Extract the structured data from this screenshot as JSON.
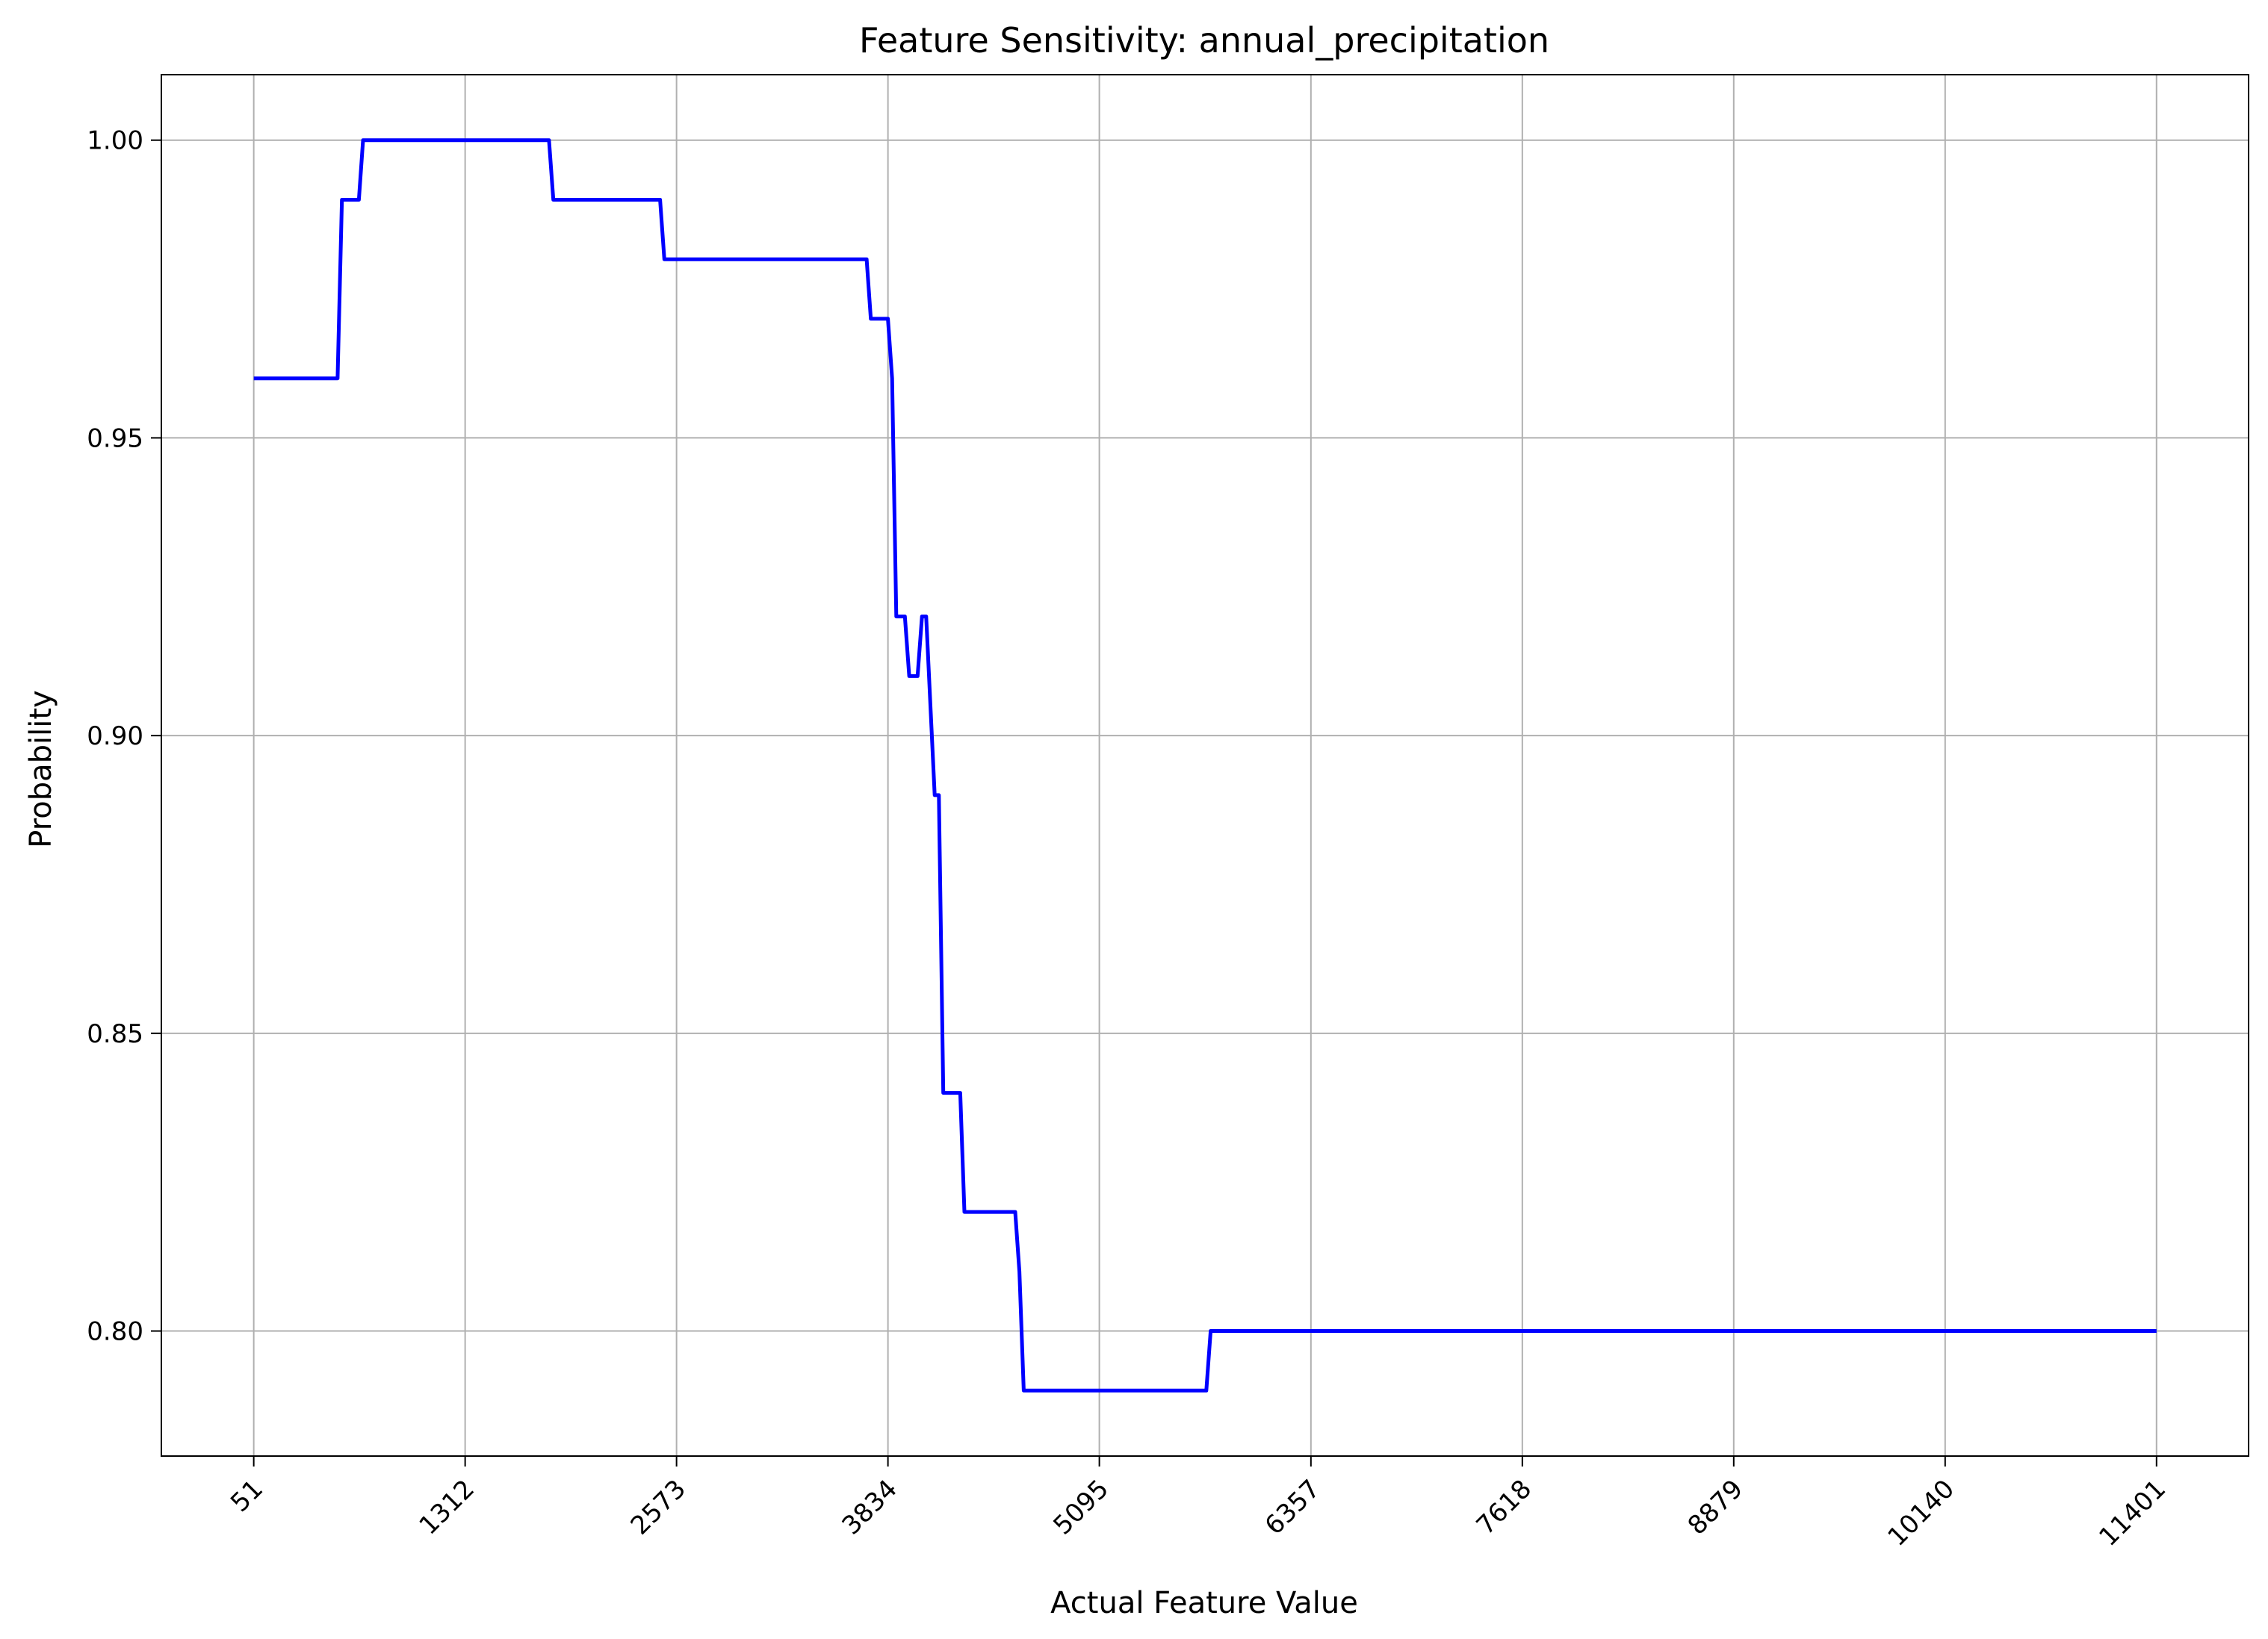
{
  "chart_data": {
    "type": "line",
    "title": "Feature Sensitivity: annual_precipitation",
    "xlabel": "Actual Feature Value",
    "ylabel": "Probability",
    "xlim": [
      -500,
      11950
    ],
    "ylim": [
      0.779,
      1.011
    ],
    "x_ticks": [
      51,
      1312,
      2573,
      3834,
      5095,
      6357,
      7618,
      8879,
      10140,
      11401
    ],
    "y_ticks": [
      0.8,
      0.85,
      0.9,
      0.95,
      1.0
    ],
    "y_tick_labels": [
      "0.80",
      "0.85",
      "0.90",
      "0.95",
      "1.00"
    ],
    "grid": true,
    "legend": "none",
    "series": [
      {
        "color": "#0000ff",
        "x": [
          51,
          551,
          577,
          678,
          703,
          1812,
          1838,
          2475,
          2500,
          3707,
          3732,
          3834,
          3859,
          3884,
          3935,
          3961,
          4011,
          4037,
          4062,
          4113,
          4138,
          4164,
          4265,
          4290,
          4593,
          4618,
          4644,
          5733,
          5759,
          11401
        ],
        "y": [
          0.96,
          0.96,
          0.99,
          0.99,
          1.0,
          1.0,
          0.99,
          0.99,
          0.98,
          0.98,
          0.97,
          0.97,
          0.96,
          0.92,
          0.92,
          0.91,
          0.91,
          0.92,
          0.92,
          0.89,
          0.89,
          0.84,
          0.84,
          0.82,
          0.82,
          0.81,
          0.79,
          0.79,
          0.8,
          0.8
        ]
      }
    ]
  }
}
